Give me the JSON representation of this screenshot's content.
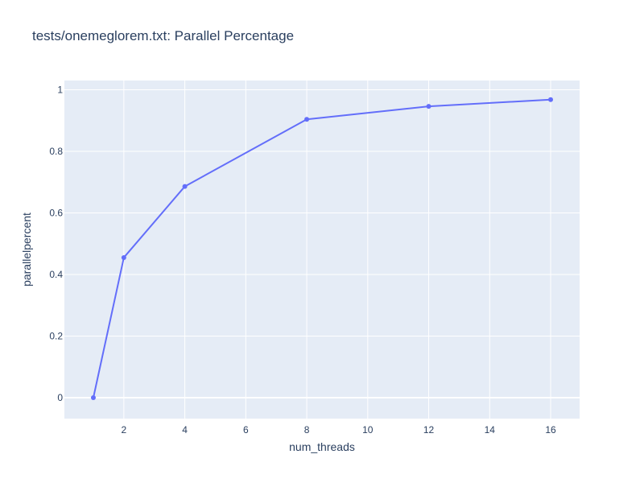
{
  "chart_data": {
    "type": "line",
    "title": "tests/onemeglorem.txt: Parallel Percentage",
    "xlabel": "num_threads",
    "ylabel": "parallelpercent",
    "x": [
      1,
      2,
      4,
      8,
      12,
      16
    ],
    "series": [
      {
        "values": [
          0,
          0.455,
          0.686,
          0.904,
          0.946,
          0.968
        ],
        "color": "#636efa",
        "mode": "lines+markers"
      }
    ],
    "xlim": [
      0.05,
      16.95
    ],
    "ylim": [
      -0.068,
      1.03
    ],
    "xticks": [
      2,
      4,
      6,
      8,
      10,
      12,
      14,
      16
    ],
    "yticks": [
      0,
      0.2,
      0.4,
      0.6,
      0.8,
      1
    ],
    "xtick_labels": [
      "2",
      "4",
      "6",
      "8",
      "10",
      "12",
      "14",
      "16"
    ],
    "ytick_labels": [
      "0",
      "0.2",
      "0.4",
      "0.6",
      "0.8",
      "1"
    ],
    "grid": true,
    "legend": "none",
    "colors": {
      "plot_background": "#e5ecf6",
      "gridline": "#ffffff",
      "text": "#2a3f5f",
      "series": "#636efa"
    }
  }
}
